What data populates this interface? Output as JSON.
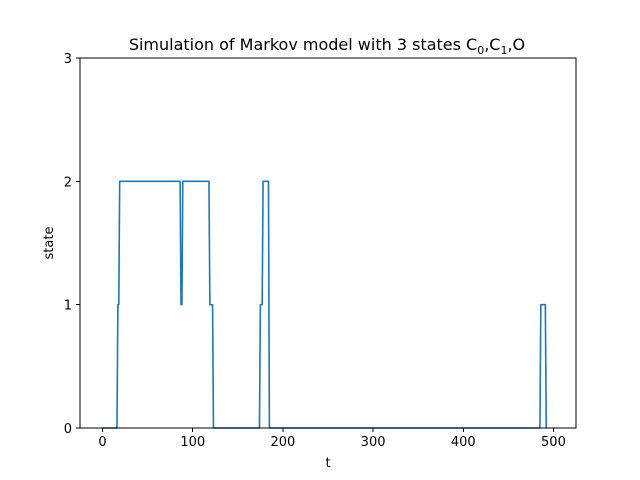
{
  "chart_data": {
    "type": "line",
    "title": {
      "prefix": "Simulation of Markov model with 3 states C",
      "sub1": "0",
      "sep1": ",C",
      "sub2": "1",
      "suffix": ",O"
    },
    "xlabel": "t",
    "ylabel": "state",
    "xlim": [
      -25,
      525
    ],
    "ylim": [
      0,
      3
    ],
    "xticks": [
      0,
      100,
      200,
      300,
      400,
      500
    ],
    "yticks": [
      0,
      1,
      2,
      3
    ],
    "grid": false,
    "series": [
      {
        "name": "state",
        "color": "#1f77b4",
        "x": [
          0,
          16,
          17,
          18,
          19,
          86,
          87,
          88,
          89,
          118,
          119,
          122,
          123,
          174,
          175,
          177,
          178,
          184,
          185,
          485,
          486,
          491,
          492
        ],
        "y": [
          0,
          0,
          1,
          1,
          2,
          2,
          1,
          1,
          2,
          2,
          1,
          1,
          0,
          0,
          1,
          1,
          2,
          2,
          0,
          0,
          1,
          1,
          0
        ]
      }
    ]
  }
}
